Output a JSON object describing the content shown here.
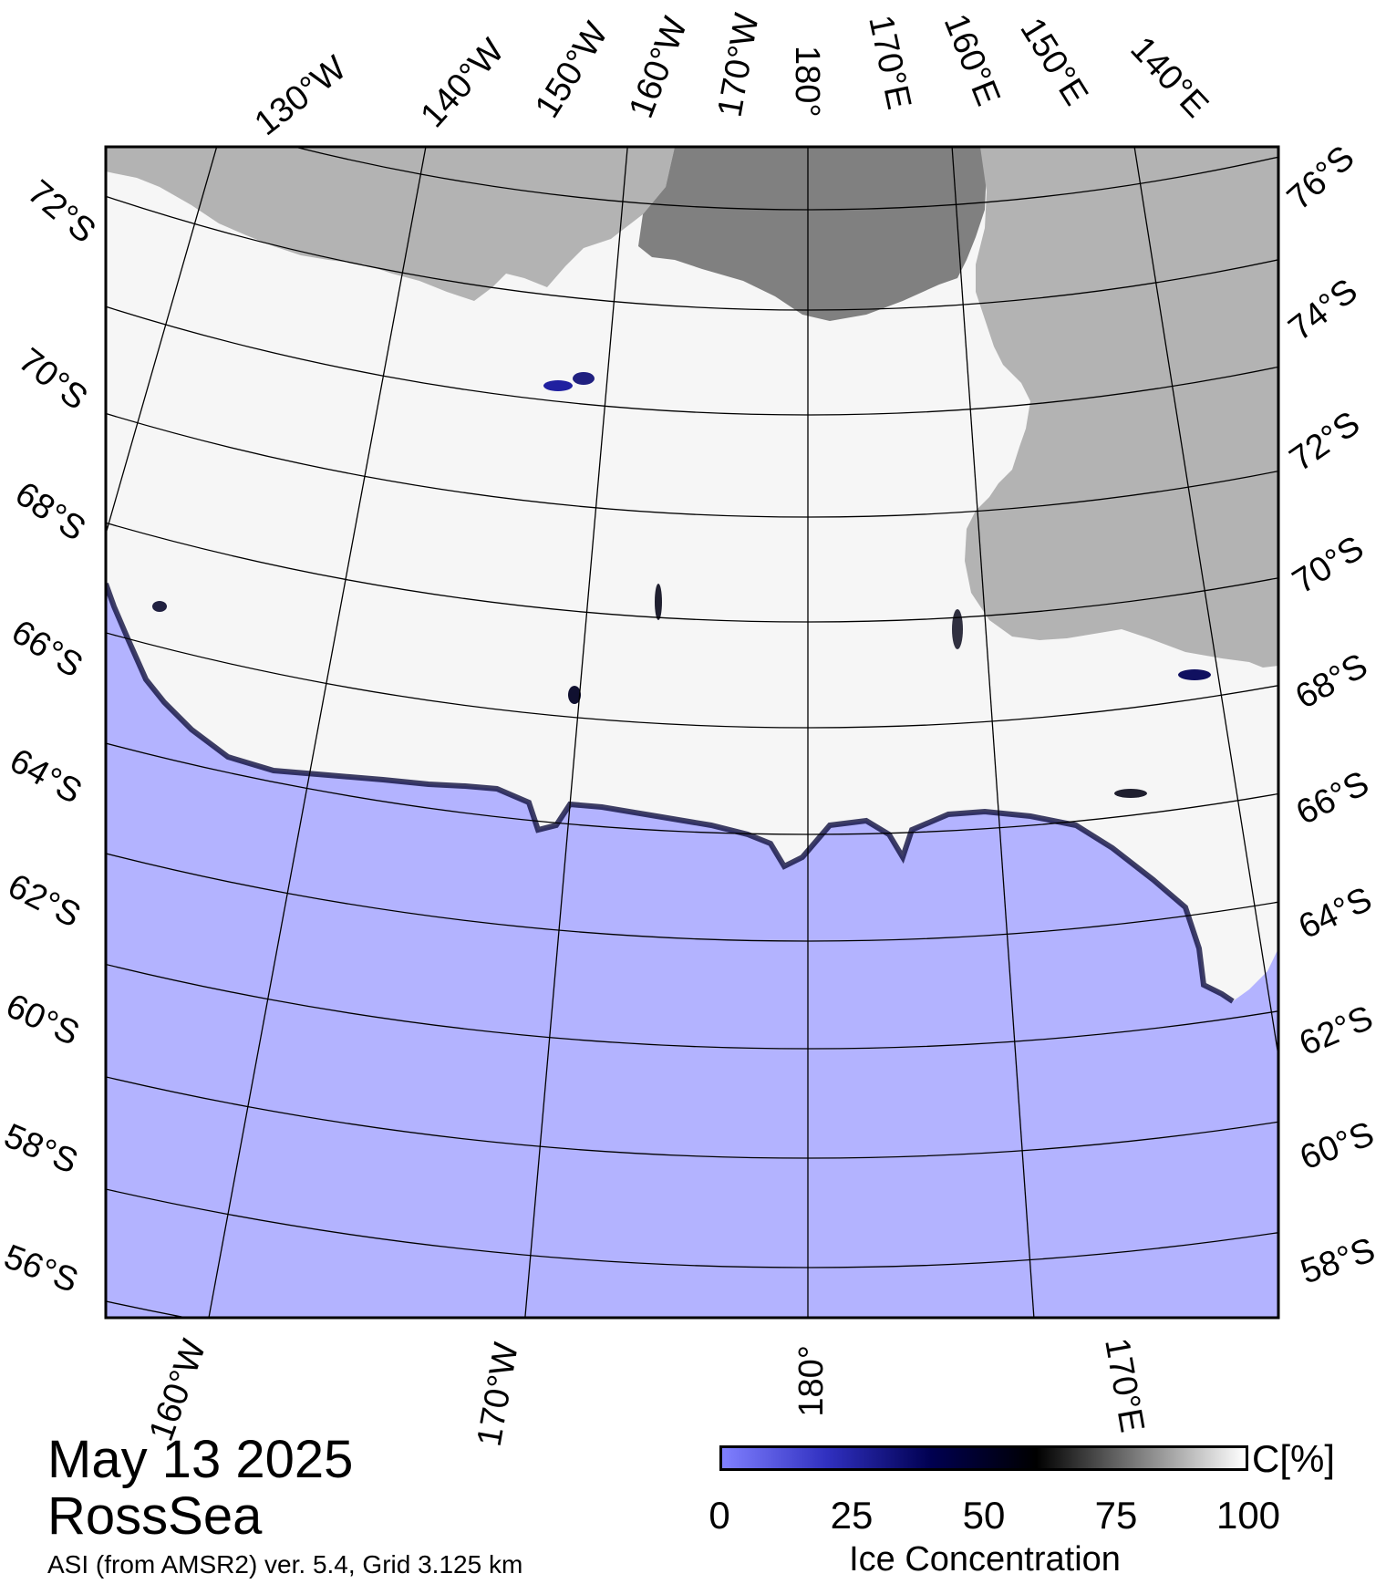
{
  "map": {
    "date": "May 13 2025",
    "region": "RossSea",
    "source": "ASI (from AMSR2) ver. 5.4,  Grid 3.125 km",
    "colors": {
      "open_water": "#b3b3ff",
      "land": "#b3b3b3",
      "ice_shelf": "#808080",
      "full_ice": "#ffffff",
      "frame": "#000000"
    },
    "top_lon_labels": [
      "130°W",
      "140°W",
      "150°W",
      "160°W",
      "170°W",
      "180°",
      "170°E",
      "160°E",
      "150°E",
      "140°E"
    ],
    "bottom_lon_labels": [
      "160°W",
      "170°W",
      "180°",
      "170°E"
    ],
    "left_lat_labels": [
      "72°S",
      "70°S",
      "68°S",
      "66°S",
      "64°S",
      "62°S",
      "60°S",
      "58°S",
      "56°S"
    ],
    "right_lat_labels": [
      "76°S",
      "74°S",
      "72°S",
      "70°S",
      "68°S",
      "66°S",
      "64°S",
      "62°S",
      "60°S",
      "58°S"
    ]
  },
  "colorbar": {
    "title": "Ice Concentration",
    "unit": "C[%]",
    "ticks": [
      "0",
      "25",
      "50",
      "75",
      "100"
    ],
    "gradient": [
      "#8080ff",
      "#3030c0",
      "#000050",
      "#000000",
      "#808080",
      "#ffffff"
    ]
  }
}
